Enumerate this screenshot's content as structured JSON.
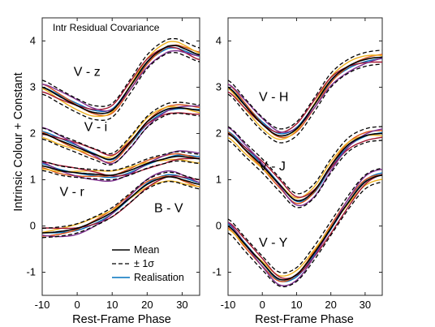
{
  "chart_data": [
    {
      "type": "line",
      "title": "Intr Residual Covariance",
      "xlabel": "Rest-Frame Phase",
      "ylabel": "Intrinsic Colour + Constant",
      "xlim": [
        -10,
        35
      ],
      "ylim": [
        -1.5,
        4.5
      ],
      "x_ticks": [
        -10,
        0,
        10,
        20,
        30
      ],
      "y_ticks": [
        -1,
        0,
        1,
        2,
        3,
        4
      ],
      "x_tick_labels": [
        "-10",
        "0",
        "10",
        "20",
        "30"
      ],
      "y_tick_labels": [
        "-1",
        "0",
        "1",
        "2",
        "3",
        "4"
      ],
      "x": [
        -10,
        -5,
        0,
        5,
        10,
        15,
        20,
        25,
        28,
        30,
        35
      ],
      "bands": [
        {
          "label": "V - z",
          "mean": [
            3.0,
            2.8,
            2.6,
            2.45,
            2.5,
            3.0,
            3.55,
            3.85,
            3.9,
            3.85,
            3.7
          ],
          "sigma": 0.15
        },
        {
          "label": "V - i",
          "mean": [
            2.0,
            1.85,
            1.7,
            1.55,
            1.45,
            1.8,
            2.25,
            2.5,
            2.55,
            2.55,
            2.5
          ],
          "sigma": 0.12
        },
        {
          "label": "V - r",
          "mean": [
            1.3,
            1.2,
            1.15,
            1.12,
            1.1,
            1.2,
            1.35,
            1.45,
            1.5,
            1.5,
            1.45
          ],
          "sigma": 0.1
        },
        {
          "label": "B - V",
          "mean": [
            -0.15,
            -0.12,
            -0.05,
            0.1,
            0.3,
            0.6,
            0.9,
            1.05,
            1.05,
            1.0,
            0.9
          ],
          "sigma": 0.1
        }
      ],
      "legend": {
        "position": "bottom-right",
        "entries": [
          "Mean",
          "± 1σ",
          "Realisation"
        ]
      },
      "colors": {
        "mean": "#000000",
        "sigma": "#000000",
        "realisations": [
          "#0072bd",
          "#d95319",
          "#edb120",
          "#a2142f",
          "#7e2f8e"
        ]
      }
    },
    {
      "type": "line",
      "xlabel": "Rest-Frame Phase",
      "xlim": [
        -10,
        35
      ],
      "ylim": [
        -1.5,
        4.5
      ],
      "x_ticks": [
        -10,
        0,
        10,
        20,
        30
      ],
      "y_ticks": [
        -1,
        0,
        1,
        2,
        3,
        4
      ],
      "x_tick_labels": [
        "-10",
        "0",
        "10",
        "20",
        "30"
      ],
      "y_tick_labels": [
        "-1",
        "0",
        "1",
        "2",
        "3",
        "4"
      ],
      "x": [
        -10,
        -5,
        0,
        5,
        10,
        15,
        20,
        25,
        30,
        35
      ],
      "bands": [
        {
          "label": "V - H",
          "mean": [
            3.0,
            2.6,
            2.2,
            1.95,
            2.1,
            2.6,
            3.15,
            3.45,
            3.6,
            3.65
          ],
          "sigma": 0.15
        },
        {
          "label": "V - J",
          "mean": [
            2.0,
            1.65,
            1.3,
            0.9,
            0.55,
            0.75,
            1.3,
            1.75,
            1.95,
            2.0
          ],
          "sigma": 0.15
        },
        {
          "label": "V - Y",
          "mean": [
            0.0,
            -0.4,
            -0.8,
            -1.15,
            -1.05,
            -0.6,
            -0.05,
            0.5,
            0.95,
            1.1
          ],
          "sigma": 0.15
        }
      ],
      "colors": {
        "mean": "#000000",
        "sigma": "#000000",
        "realisations": [
          "#0072bd",
          "#d95319",
          "#edb120",
          "#a2142f",
          "#7e2f8e"
        ]
      }
    }
  ]
}
